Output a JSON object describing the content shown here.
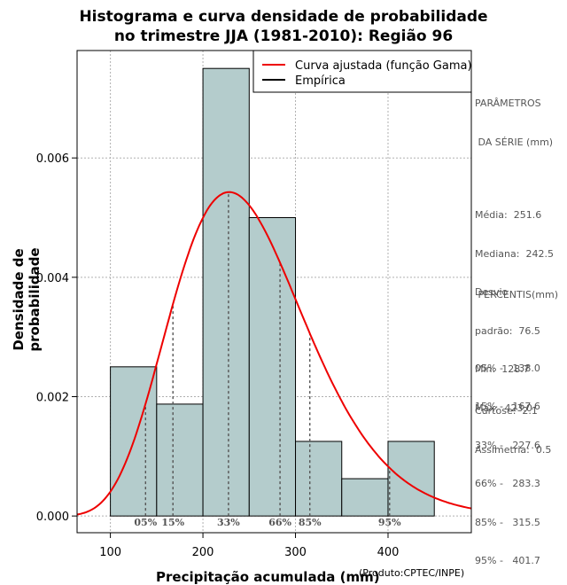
{
  "chart_data": {
    "type": "histogram",
    "title": [
      "Histograma e curva densidade de probabilidade",
      "no trimestre JJA (1981-2010): Região 96"
    ],
    "xlabel": "Precipitação acumulada (mm)",
    "ylabel": "Densidade de probabilidade",
    "credit": "(Produto:CPTEC/INPE)",
    "xlim": [
      64,
      490
    ],
    "ylim": [
      -0.00028,
      0.0078
    ],
    "xticks": [
      100,
      200,
      300,
      400
    ],
    "yticks": [
      0.0,
      0.002,
      0.004,
      0.006
    ],
    "ytick_labels": [
      "0.000",
      "0.002",
      "0.004",
      "0.006"
    ],
    "bins": [
      {
        "from": 100,
        "to": 150,
        "density": 0.0025
      },
      {
        "from": 150,
        "to": 200,
        "density": 0.001875
      },
      {
        "from": 200,
        "to": 250,
        "density": 0.0075
      },
      {
        "from": 250,
        "to": 300,
        "density": 0.005
      },
      {
        "from": 300,
        "to": 350,
        "density": 0.00125
      },
      {
        "from": 350,
        "to": 400,
        "density": 0.000625
      },
      {
        "from": 400,
        "to": 450,
        "density": 0.00125
      }
    ],
    "fitted_curve": {
      "distribution": "gamma",
      "mean": 251.6,
      "sd": 76.5
    },
    "percentile_lines": [
      {
        "label": "05%",
        "value": 138.0
      },
      {
        "label": "15%",
        "value": 167.6
      },
      {
        "label": "33%",
        "value": 227.6
      },
      {
        "label": "66%",
        "value": 283.3
      },
      {
        "label": "85%",
        "value": 315.5
      },
      {
        "label": "95%",
        "value": 401.7
      }
    ],
    "legend": {
      "position": "top-right",
      "entries": [
        {
          "label": "Curva ajustada (função Gama)",
          "color": "#ee0000"
        },
        {
          "label": "Empírica",
          "color": "#000000"
        }
      ]
    },
    "colors": {
      "bar_fill": "#b4cccc",
      "curve": "#ee0000",
      "grid": "#b0b0b0"
    }
  },
  "stats_panel": {
    "header_line1": "PARÂMETROS",
    "header_line2": " DA SÉRIE (mm)",
    "lines": [
      "Média:  251.6",
      "Mediana:  242.5",
      "Desvio",
      "padrão:  76.5",
      "Mín:  128.7",
      "Máx:  423.0"
    ]
  },
  "percentis_panel": {
    "header": " PERCENTIS(mm)",
    "lines": [
      "05% -   138.0",
      "15% -   167.6",
      "33% -   227.6",
      "66% -   283.3",
      "85% -   315.5",
      "95% -   401.7"
    ]
  },
  "shape_panel": {
    "lines": [
      "Curtose:  2.1",
      "Assimetria:  0.5"
    ]
  }
}
